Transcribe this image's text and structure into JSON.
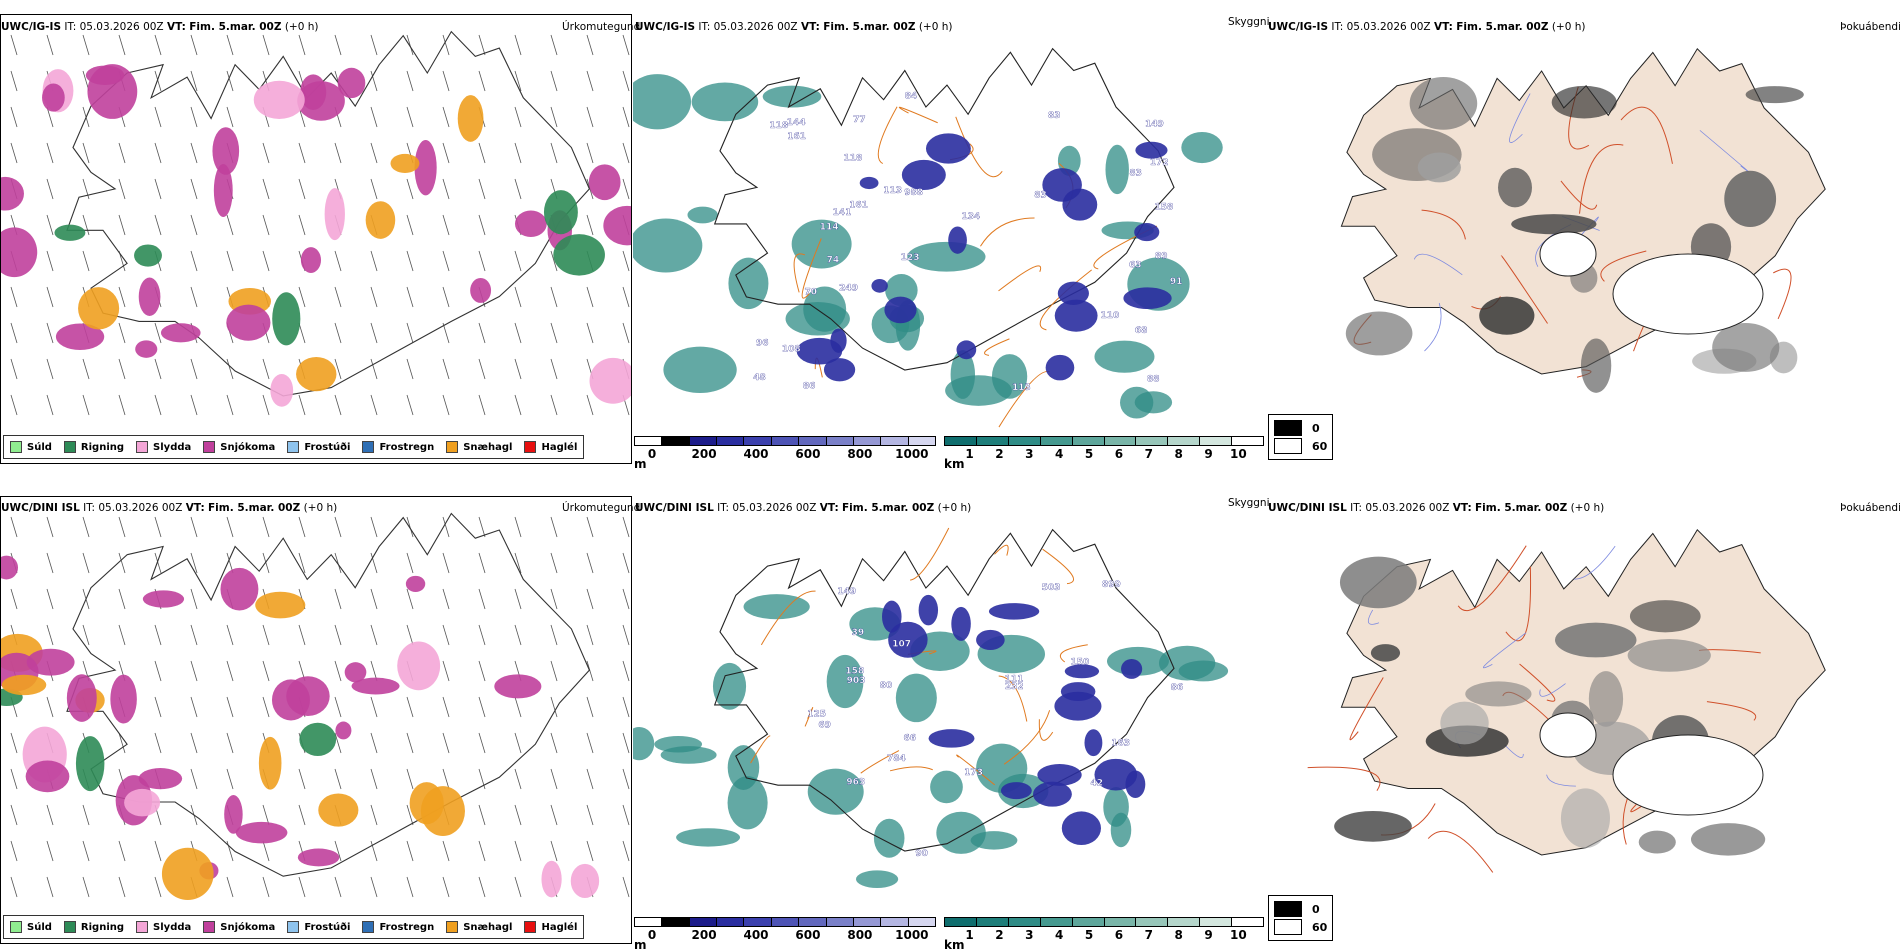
{
  "rows": [
    {
      "model": "UWC/IG-IS",
      "panels": {
        "precip": {
          "model": "UWC/IG-IS",
          "it_label": "IT:",
          "it_value": "05.03.2026 00Z",
          "vt_label": "VT:",
          "vt_value": "Fim. 5.mar. 00Z",
          "lead": "(+0 h)",
          "type": "Úrkomutegund"
        },
        "cloud": {
          "model": "UWC/IG-IS",
          "it_label": "IT:",
          "it_value": "05.03.2026 00Z",
          "vt_label": "VT:",
          "vt_value": "Fim. 5.mar. 00Z",
          "lead": "(+0 h)",
          "type": "Skyggni"
        },
        "fog": {
          "model": "UWC/IG-IS",
          "it_label": "IT:",
          "it_value": "05.03.2026 00Z",
          "vt_label": "VT:",
          "vt_value": "Fim. 5.mar. 00Z",
          "lead": "(+0 h)",
          "type": "Þokuábendi"
        }
      }
    },
    {
      "model": "UWC/DINI ISL",
      "panels": {
        "precip": {
          "model": "UWC/DINI ISL",
          "it_label": "IT:",
          "it_value": "05.03.2026 00Z",
          "vt_label": "VT:",
          "vt_value": "Fim. 5.mar. 00Z",
          "lead": "(+0 h)",
          "type": "Úrkomutegund"
        },
        "cloud": {
          "model": "UWC/DINI ISL",
          "it_label": "IT:",
          "it_value": "05.03.2026 00Z",
          "vt_label": "VT:",
          "vt_value": "Fim. 5.mar. 00Z",
          "lead": "(+0 h)",
          "type": "Skyggni"
        },
        "fog": {
          "model": "UWC/DINI ISL",
          "it_label": "IT:",
          "it_value": "05.03.2026 00Z",
          "vt_label": "VT:",
          "vt_value": "Fim. 5.mar. 00Z",
          "lead": "(+0 h)",
          "type": "Þokuábendi"
        }
      }
    }
  ],
  "precip_legend": [
    {
      "label": "Súld",
      "color": "#90ee90"
    },
    {
      "label": "Rigning",
      "color": "#2e8b57"
    },
    {
      "label": "Slydda",
      "color": "#f4a6d7"
    },
    {
      "label": "Snjókoma",
      "color": "#c0409c"
    },
    {
      "label": "Frostúði",
      "color": "#8fc4ee"
    },
    {
      "label": "Frostregn",
      "color": "#2f6fb5"
    },
    {
      "label": "Snæhagl",
      "color": "#f0a020"
    },
    {
      "label": "Haglél",
      "color": "#e81010"
    }
  ],
  "ceiling_bar": {
    "unit": "m",
    "ticks": [
      "0",
      "200",
      "400",
      "600",
      "800",
      "1000"
    ],
    "colors": [
      "#ffffff",
      "#000000",
      "#1c1c8a",
      "#2a2ea0",
      "#3b40ad",
      "#4d53b5",
      "#6268bd",
      "#7a80c8",
      "#9598d4",
      "#b4b6e2",
      "#d6d7f0"
    ]
  },
  "visibility_bar": {
    "unit": "km",
    "ticks": [
      "1",
      "2",
      "3",
      "4",
      "5",
      "6",
      "7",
      "8",
      "9",
      "10"
    ],
    "colors": [
      "#0f6e6e",
      "#1e7e7a",
      "#2f8c86",
      "#45998f",
      "#5ea69b",
      "#79b5a8",
      "#97c6b9",
      "#b5d6cb",
      "#d4e7df",
      "#ffffff"
    ]
  },
  "fog_legend": {
    "items": [
      {
        "label": "0",
        "color": "#000000"
      },
      {
        "label": "60",
        "color": "#ffffff"
      }
    ]
  },
  "ceiling_labels_top": [
    "141",
    "118",
    "114",
    "63",
    "48",
    "144",
    "83",
    "74",
    "91",
    "172",
    "83",
    "161",
    "158",
    "134",
    "70",
    "108",
    "113",
    "96",
    "113",
    "83",
    "118",
    "149",
    "68",
    "161",
    "123",
    "84",
    "88",
    "249",
    "988",
    "86",
    "110",
    "77",
    "89"
  ],
  "ceiling_labels_bottom": [
    "503",
    "66",
    "149",
    "80",
    "111",
    "86",
    "125",
    "899",
    "903",
    "173",
    "90",
    "158",
    "150",
    "232",
    "784",
    "963",
    "42",
    "163",
    "39",
    "107",
    "69"
  ]
}
